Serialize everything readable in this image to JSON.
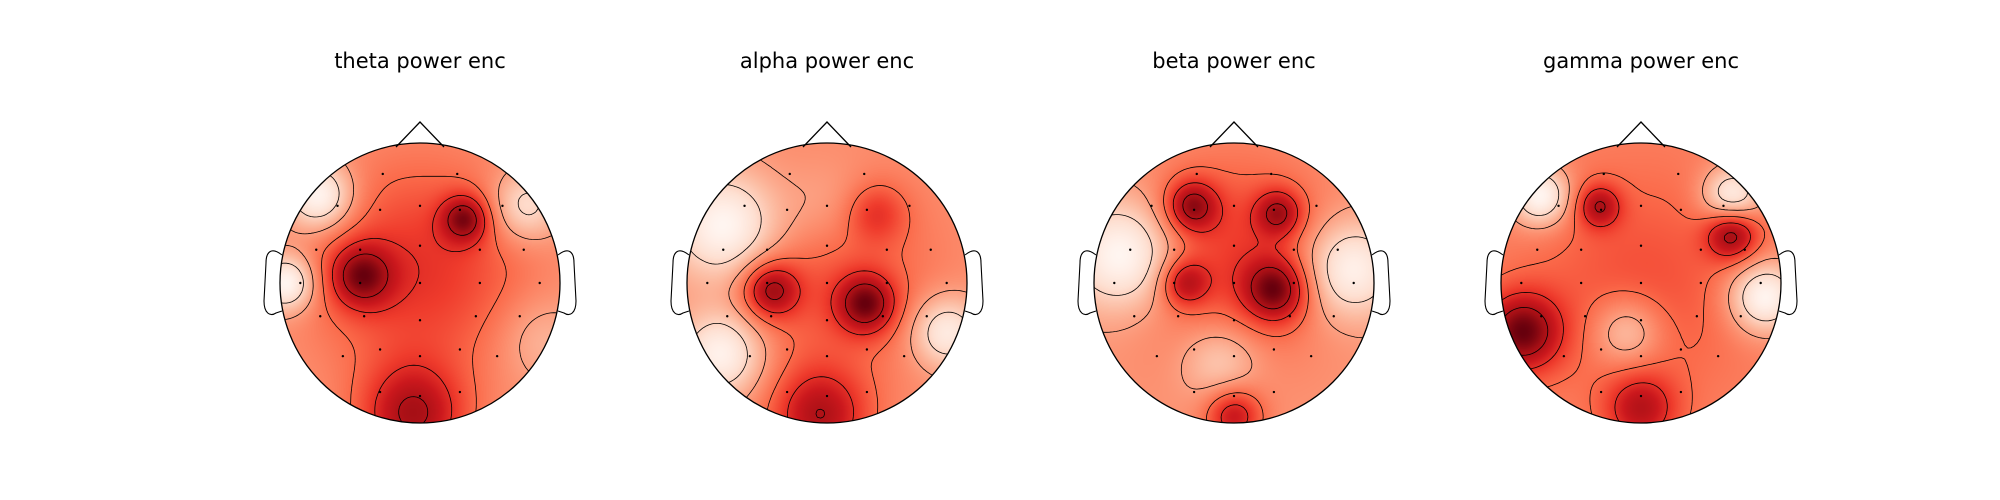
{
  "figure": {
    "background": "#ffffff",
    "colormap": "Reds",
    "colors": {
      "low": "#fff5f0",
      "mid": "#fb6a4a",
      "high": "#67000d",
      "outline": "#000000"
    }
  },
  "chart_data": [
    {
      "type": "heatmap",
      "subtype": "eeg-topomap",
      "title": "theta power enc",
      "colormap": "Reds",
      "contour_lines": true,
      "sensor_markers": true,
      "hotspots": [
        {
          "x": -0.42,
          "y": 0.05,
          "v": 1.0,
          "s": 0.16
        },
        {
          "x": 0.32,
          "y": 0.46,
          "v": 1.0,
          "s": 0.12
        },
        {
          "x": -0.05,
          "y": -0.95,
          "v": 1.1,
          "s": 0.26
        },
        {
          "x": 0.0,
          "y": 0.1,
          "v": 0.7,
          "s": 0.55
        },
        {
          "x": -0.72,
          "y": 0.62,
          "v": -1.0,
          "s": 0.17
        },
        {
          "x": -0.95,
          "y": 0.0,
          "v": -1.0,
          "s": 0.14
        },
        {
          "x": 0.75,
          "y": 0.55,
          "v": -0.7,
          "s": 0.18
        },
        {
          "x": 0.85,
          "y": -0.4,
          "v": -0.3,
          "s": 0.22
        }
      ]
    },
    {
      "type": "heatmap",
      "subtype": "eeg-topomap",
      "title": "alpha power enc",
      "colormap": "Reds",
      "contour_lines": true,
      "sensor_markers": true,
      "hotspots": [
        {
          "x": -0.4,
          "y": -0.05,
          "v": 1.0,
          "s": 0.14
        },
        {
          "x": 0.28,
          "y": -0.15,
          "v": 1.1,
          "s": 0.15
        },
        {
          "x": -0.05,
          "y": -0.95,
          "v": 1.0,
          "s": 0.24
        },
        {
          "x": 0.35,
          "y": 0.5,
          "v": 0.5,
          "s": 0.15
        },
        {
          "x": 0.0,
          "y": 0.05,
          "v": 0.45,
          "s": 0.55
        },
        {
          "x": -0.72,
          "y": 0.4,
          "v": -1.0,
          "s": 0.28
        },
        {
          "x": -0.75,
          "y": -0.5,
          "v": -0.9,
          "s": 0.22
        },
        {
          "x": 0.85,
          "y": -0.35,
          "v": -0.8,
          "s": 0.18
        },
        {
          "x": 0.0,
          "y": 0.55,
          "v": -0.3,
          "s": 0.25
        }
      ]
    },
    {
      "type": "heatmap",
      "subtype": "eeg-topomap",
      "title": "beta power enc",
      "colormap": "Reds",
      "contour_lines": true,
      "sensor_markers": true,
      "hotspots": [
        {
          "x": -0.3,
          "y": 0.55,
          "v": 1.0,
          "s": 0.13
        },
        {
          "x": 0.32,
          "y": 0.5,
          "v": 0.85,
          "s": 0.12
        },
        {
          "x": 0.3,
          "y": -0.05,
          "v": 1.1,
          "s": 0.16
        },
        {
          "x": -0.35,
          "y": 0.0,
          "v": 0.8,
          "s": 0.12
        },
        {
          "x": 0.0,
          "y": 0.2,
          "v": 0.6,
          "s": 0.5
        },
        {
          "x": 0.0,
          "y": -0.95,
          "v": 0.9,
          "s": 0.14
        },
        {
          "x": -0.78,
          "y": 0.2,
          "v": -1.0,
          "s": 0.28
        },
        {
          "x": 0.82,
          "y": 0.1,
          "v": -0.9,
          "s": 0.25
        },
        {
          "x": -0.1,
          "y": -0.55,
          "v": -0.5,
          "s": 0.2
        }
      ]
    },
    {
      "type": "heatmap",
      "subtype": "eeg-topomap",
      "title": "gamma power enc",
      "colormap": "Reds",
      "contour_lines": true,
      "sensor_markers": true,
      "hotspots": [
        {
          "x": -0.3,
          "y": 0.55,
          "v": 0.8,
          "s": 0.11
        },
        {
          "x": -0.85,
          "y": -0.35,
          "v": 1.2,
          "s": 0.2
        },
        {
          "x": 0.65,
          "y": 0.35,
          "v": 1.0,
          "s": 0.13
        },
        {
          "x": 0.0,
          "y": -0.9,
          "v": 0.8,
          "s": 0.18
        },
        {
          "x": 0.0,
          "y": 0.0,
          "v": 0.35,
          "s": 0.55
        },
        {
          "x": -0.72,
          "y": 0.62,
          "v": -1.0,
          "s": 0.15
        },
        {
          "x": 0.65,
          "y": 0.62,
          "v": -0.9,
          "s": 0.15
        },
        {
          "x": 0.88,
          "y": -0.1,
          "v": -1.0,
          "s": 0.18
        },
        {
          "x": -0.1,
          "y": -0.35,
          "v": -0.6,
          "s": 0.18
        }
      ]
    }
  ]
}
